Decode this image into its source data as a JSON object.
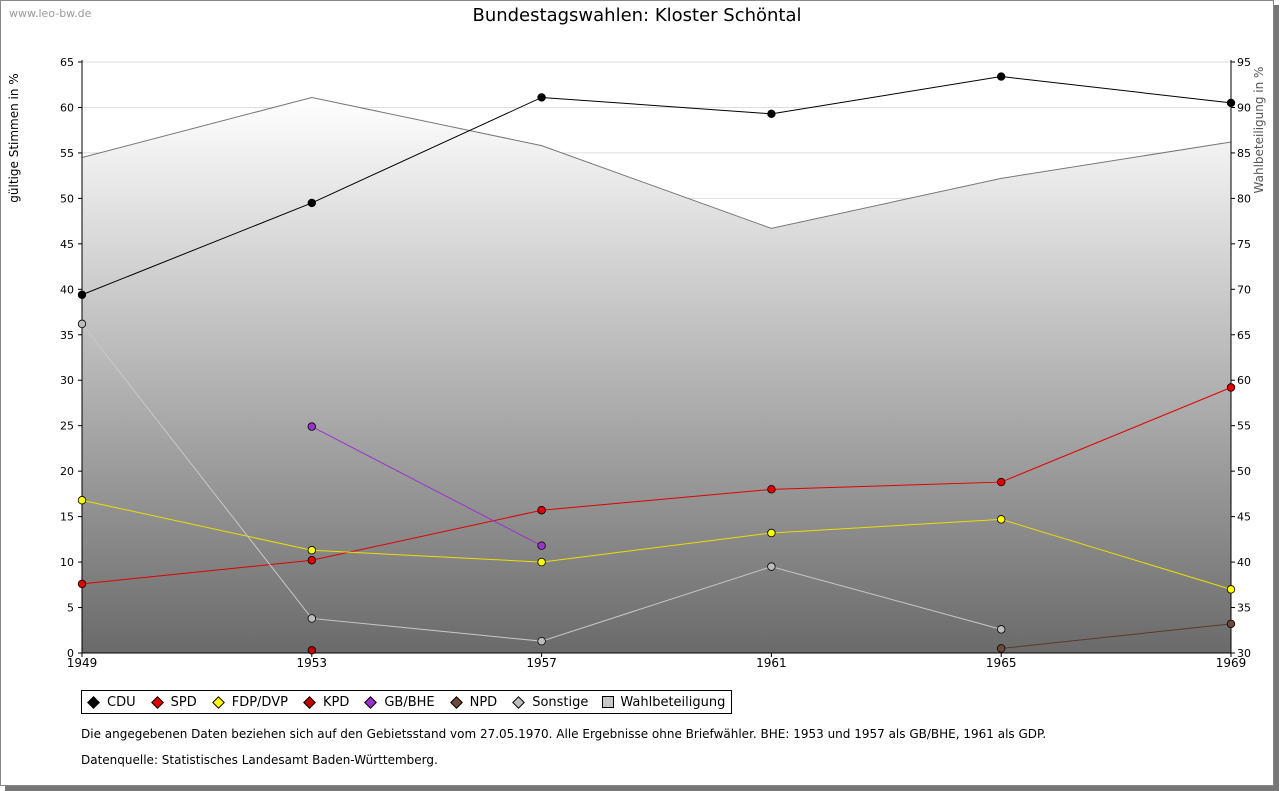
{
  "watermark": "www.leo-bw.de",
  "chart_data": {
    "type": "line",
    "title": "Bundestagswahlen: Kloster Schöntal",
    "ylabel": "gültige Stimmen in %",
    "y2label": "Wahlbeteiligung in %",
    "x": [
      1949,
      1953,
      1957,
      1961,
      1965,
      1969
    ],
    "xticks": [
      "1949",
      "1953",
      "1957",
      "1961",
      "1965",
      "1969"
    ],
    "ylim": [
      0,
      65
    ],
    "y2lim": [
      30,
      95
    ],
    "yticks": [
      "0",
      "5",
      "10",
      "15",
      "20",
      "25",
      "30",
      "35",
      "40",
      "45",
      "50",
      "55",
      "60",
      "65"
    ],
    "y2ticks": [
      "30",
      "35",
      "40",
      "45",
      "50",
      "55",
      "60",
      "65",
      "70",
      "75",
      "80",
      "85",
      "90",
      "95"
    ],
    "grid": true,
    "legend_position": "bottom",
    "series": [
      {
        "name": "CDU",
        "color": "#000000",
        "marker": "#000000",
        "axis": "left",
        "values": [
          39.4,
          49.5,
          61.1,
          59.3,
          63.4,
          60.5
        ]
      },
      {
        "name": "SPD",
        "color": "#e00000",
        "marker": "#e00000",
        "axis": "left",
        "values": [
          7.6,
          10.2,
          15.7,
          18.0,
          18.8,
          29.2
        ]
      },
      {
        "name": "FDP/DVP",
        "color": "#e8e000",
        "marker": "#ffff00",
        "axis": "left",
        "values": [
          16.8,
          11.3,
          10.0,
          13.2,
          14.7,
          7.0
        ]
      },
      {
        "name": "KPD",
        "color": "#c00000",
        "marker": "#c00000",
        "axis": "left",
        "values": [
          null,
          0.3,
          null,
          null,
          null,
          null
        ]
      },
      {
        "name": "GB/BHE",
        "color": "#9933cc",
        "marker": "#9933cc",
        "axis": "left",
        "values": [
          null,
          24.9,
          11.8,
          null,
          null,
          null
        ]
      },
      {
        "name": "NPD",
        "color": "#5a3a2a",
        "marker": "#6b4a3a",
        "axis": "left",
        "values": [
          null,
          null,
          null,
          null,
          0.5,
          3.2
        ]
      },
      {
        "name": "Sonstige",
        "color": "#c8c8c8",
        "marker": "#bdbdbd",
        "axis": "left",
        "values": [
          36.2,
          3.8,
          1.3,
          9.5,
          2.6,
          null
        ]
      },
      {
        "name": "Wahlbeteiligung",
        "color": "#777777",
        "marker": "#c8c8c8",
        "axis": "right",
        "type": "area",
        "values": [
          84.5,
          91.1,
          85.8,
          76.7,
          82.2,
          86.2
        ]
      }
    ]
  },
  "footnote": "Die angegebenen Daten beziehen sich auf den Gebietsstand vom 27.05.1970. Alle Ergebnisse ohne Briefwähler. BHE: 1953 und 1957 als GB/BHE, 1961 als GDP.",
  "source": "Datenquelle: Statistisches Landesamt Baden-Württemberg."
}
